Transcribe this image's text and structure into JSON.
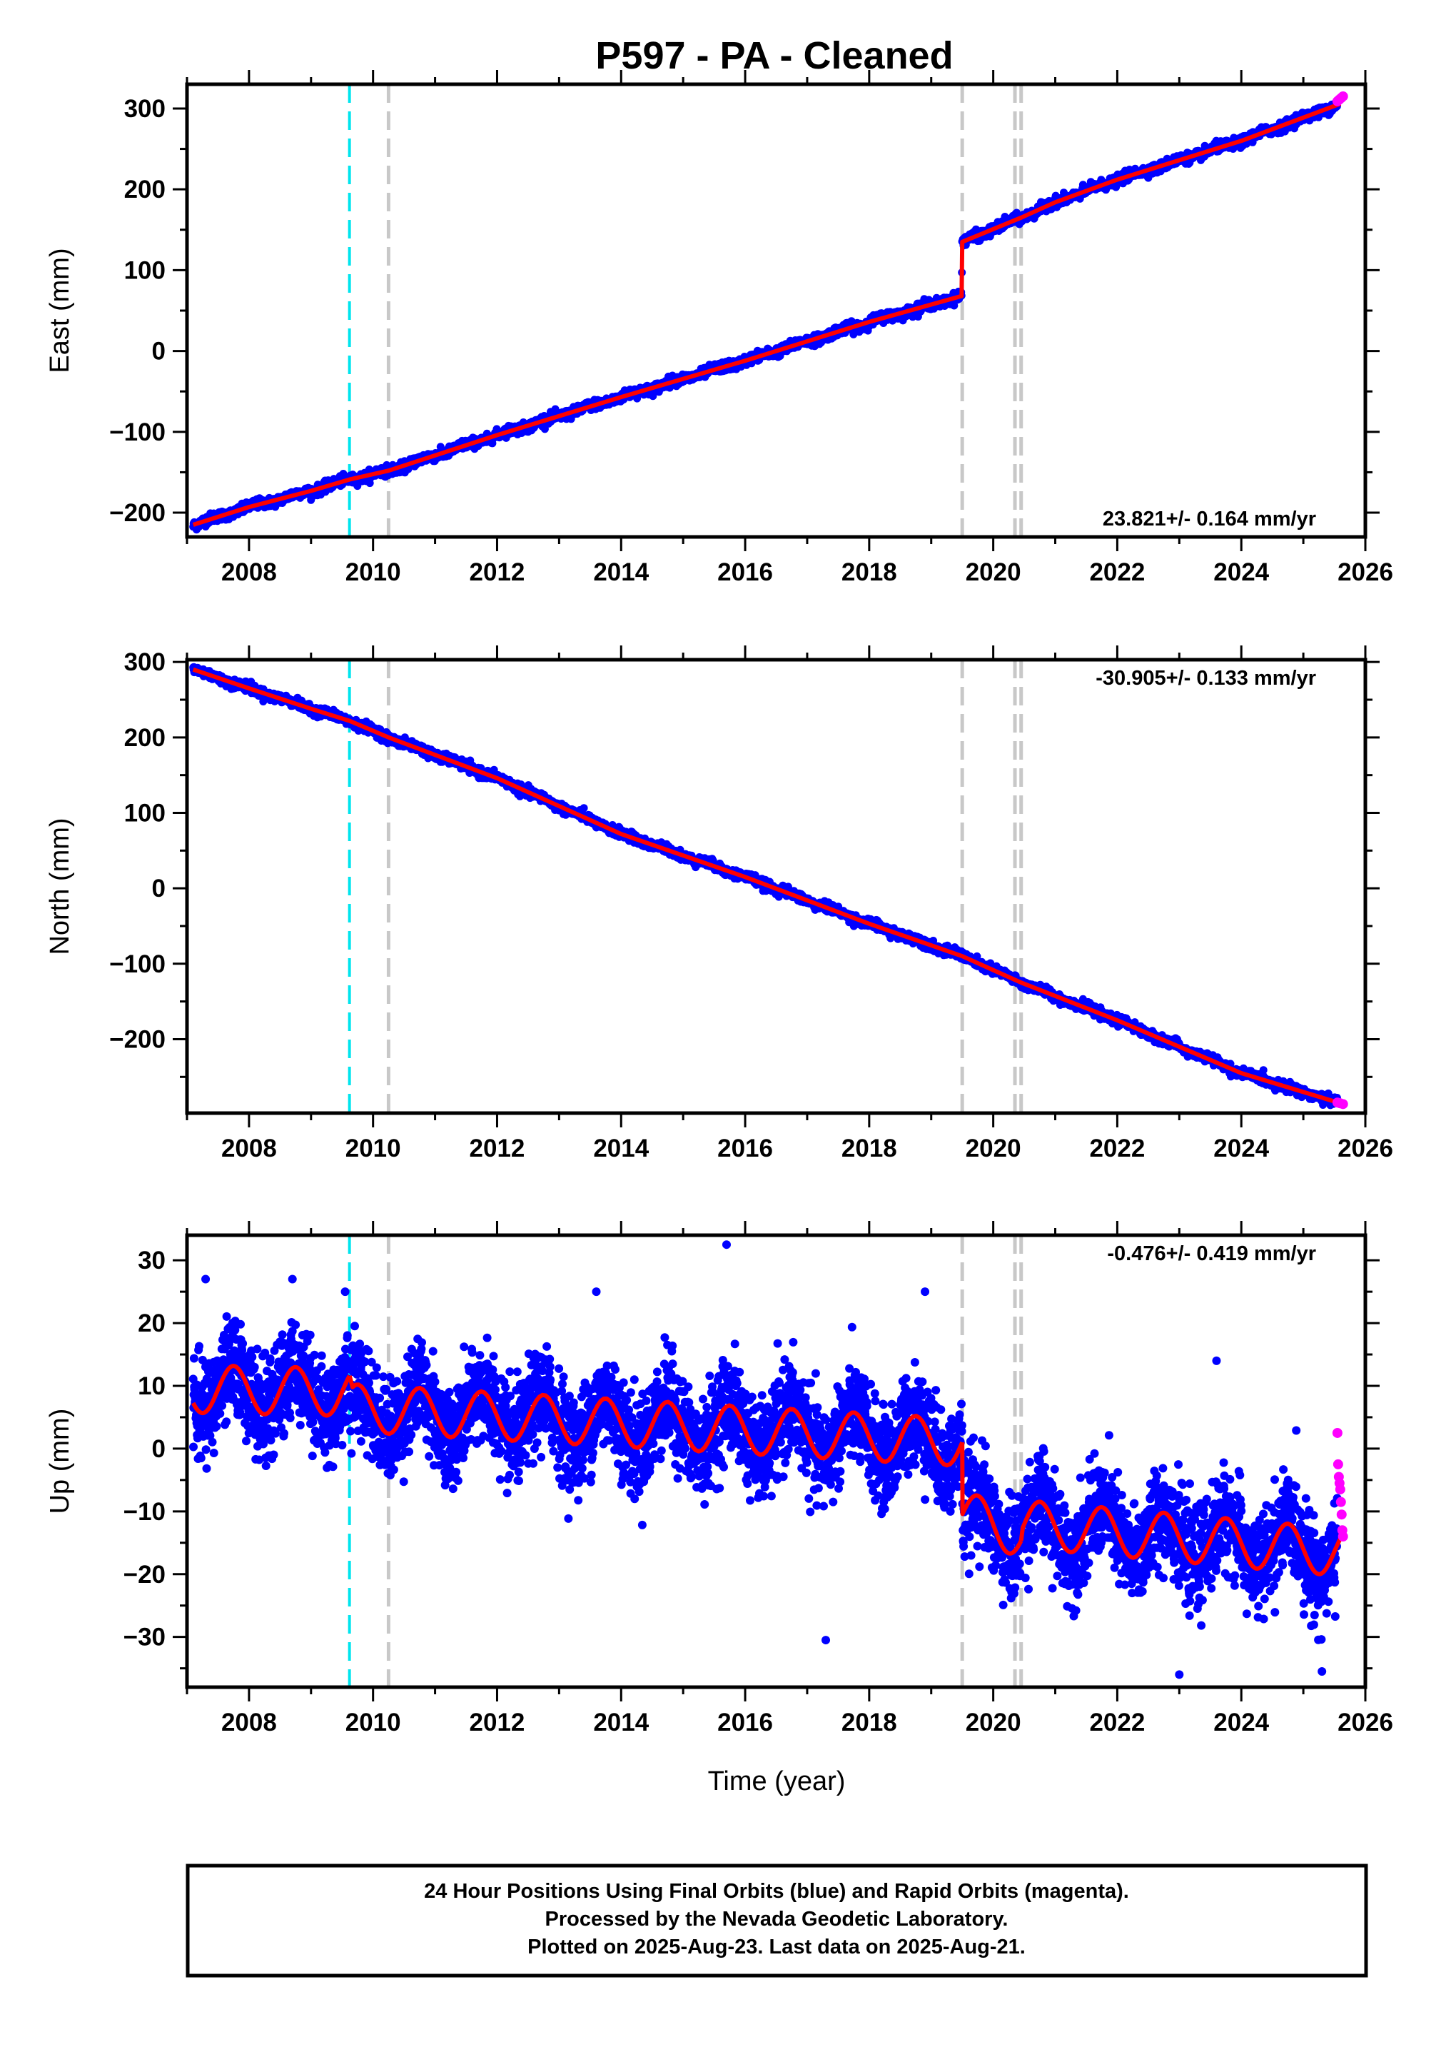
{
  "title": "P597  - PA - Cleaned",
  "colors": {
    "final": "#0000ff",
    "rapid": "#ff00ff",
    "model": "#ff0000",
    "cyan_line": "#00e5ee",
    "gray_line": "#c8c8c8",
    "frame": "#000000"
  },
  "x_axis": {
    "label": "Time (year)",
    "range": [
      2007.0,
      2026.0
    ],
    "ticks": [
      2008,
      2010,
      2012,
      2014,
      2016,
      2018,
      2020,
      2022,
      2024,
      2026
    ],
    "tick_labels": [
      "2008",
      "2010",
      "2012",
      "2014",
      "2016",
      "2018",
      "2020",
      "2022",
      "2024",
      "2026"
    ]
  },
  "vertical_lines": [
    {
      "year": 2009.62,
      "color": "cyan",
      "style": "dashed"
    },
    {
      "year": 2010.25,
      "color": "gray",
      "style": "dashed"
    },
    {
      "year": 2019.5,
      "color": "gray",
      "style": "dashed"
    },
    {
      "year": 2020.35,
      "color": "gray",
      "style": "dashed"
    },
    {
      "year": 2020.45,
      "color": "gray",
      "style": "dashed"
    }
  ],
  "chart_data": [
    {
      "type": "scatter",
      "component": "East",
      "ylabel": "East (mm)",
      "ylim": [
        -230,
        330
      ],
      "yticks": [
        -200,
        -100,
        0,
        100,
        200,
        300
      ],
      "ytick_labels": [
        "−200",
        "−100",
        "0",
        "100",
        "200",
        "300"
      ],
      "rate_text": "23.821+/- 0.164 mm/yr",
      "rate_position": "bottom-right",
      "velocity_mm_per_yr": 23.821,
      "steps": [
        {
          "year": 2019.5,
          "offset_mm": 67
        }
      ],
      "annual_amplitude_mm": 1,
      "model": [
        [
          2007.1,
          -215
        ],
        [
          2008.0,
          -193
        ],
        [
          2009.0,
          -173
        ],
        [
          2009.62,
          -159
        ],
        [
          2010.25,
          -148
        ],
        [
          2012.0,
          -104
        ],
        [
          2014.0,
          -57
        ],
        [
          2016.0,
          -12
        ],
        [
          2018.0,
          36
        ],
        [
          2019.49,
          68
        ],
        [
          2019.5,
          135
        ],
        [
          2020.45,
          165
        ],
        [
          2021.0,
          184
        ],
        [
          2022.0,
          212
        ],
        [
          2023.0,
          236
        ],
        [
          2024.0,
          260
        ],
        [
          2025.6,
          306
        ]
      ],
      "series": [
        {
          "name": "Final Orbits (blue)",
          "x_range": [
            2007.1,
            2025.55
          ],
          "scatter_mm": 3
        },
        {
          "name": "Rapid Orbits (magenta)",
          "x_range": [
            2025.55,
            2025.64
          ],
          "values_mm": [
            309,
            311,
            313,
            315
          ]
        }
      ]
    },
    {
      "type": "scatter",
      "component": "North",
      "ylabel": "North (mm)",
      "ylim": [
        -298,
        303
      ],
      "yticks": [
        -200,
        -100,
        0,
        100,
        200,
        300
      ],
      "ytick_labels": [
        "−200",
        "−100",
        "0",
        "100",
        "200",
        "300"
      ],
      "rate_text": "-30.905+/- 0.133 mm/yr",
      "rate_position": "top-right",
      "velocity_mm_per_yr": -30.905,
      "model": [
        [
          2007.1,
          290
        ],
        [
          2008.0,
          265
        ],
        [
          2009.0,
          238
        ],
        [
          2009.62,
          222
        ],
        [
          2010.25,
          200
        ],
        [
          2012.0,
          146
        ],
        [
          2014.0,
          72
        ],
        [
          2016.0,
          15
        ],
        [
          2018.0,
          -47
        ],
        [
          2019.5,
          -90
        ],
        [
          2020.45,
          -125
        ],
        [
          2022.0,
          -175
        ],
        [
          2024.0,
          -245
        ],
        [
          2025.6,
          -285
        ]
      ],
      "series": [
        {
          "name": "Final Orbits (blue)",
          "x_range": [
            2007.1,
            2025.55
          ],
          "scatter_mm": 3
        },
        {
          "name": "Rapid Orbits (magenta)",
          "x_range": [
            2025.55,
            2025.64
          ],
          "values_mm": [
            -284,
            -285,
            -286
          ]
        }
      ]
    },
    {
      "type": "scatter",
      "component": "Up",
      "ylabel": "Up (mm)",
      "ylim": [
        -38,
        34
      ],
      "yticks": [
        -30,
        -20,
        -10,
        0,
        10,
        20,
        30
      ],
      "ytick_labels": [
        "−30",
        "−20",
        "−10",
        "0",
        "10",
        "20",
        "30"
      ],
      "rate_text": "-0.476+/- 0.419 mm/yr",
      "rate_position": "top-right",
      "velocity_mm_per_yr": -0.476,
      "annual_amplitude_mm": 3.8,
      "model_segments": [
        {
          "x_range": [
            2007.1,
            2009.62
          ],
          "start": 9.5,
          "end": 9.0,
          "amplitude": 3.8
        },
        {
          "x_range": [
            2009.62,
            2019.5
          ],
          "start": 6.5,
          "end": 1.0,
          "amplitude": 3.8
        },
        {
          "x_range": [
            2019.5,
            2020.45
          ],
          "start": -10.5,
          "end": -13.5,
          "amplitude": 3.8
        },
        {
          "x_range": [
            2020.45,
            2025.6
          ],
          "start": -12.0,
          "end": -16.5,
          "amplitude": 3.8
        }
      ],
      "outliers": [
        [
          2007.3,
          27
        ],
        [
          2008.7,
          27
        ],
        [
          2009.55,
          25
        ],
        [
          2015.7,
          32.5
        ],
        [
          2017.3,
          -30.5
        ],
        [
          2023.0,
          -36
        ],
        [
          2023.6,
          14
        ],
        [
          2025.3,
          -35.5
        ],
        [
          2018.9,
          25
        ],
        [
          2013.6,
          25
        ]
      ],
      "series": [
        {
          "name": "Final Orbits (blue)",
          "x_range": [
            2007.1,
            2025.55
          ],
          "scatter_mm": 3.8
        },
        {
          "name": "Rapid Orbits (magenta)",
          "x_range": [
            2025.55,
            2025.64
          ],
          "values_mm": [
            2.5,
            -2.5,
            -4.5,
            -5.5,
            -6.5,
            -8.5,
            -10.5,
            -13,
            -14
          ]
        }
      ]
    }
  ],
  "footer": {
    "line1": "24 Hour Positions Using Final Orbits (blue) and Rapid Orbits (magenta).",
    "line2": "Processed by the Nevada Geodetic Laboratory.",
    "line3": "Plotted on 2025-Aug-23. Last data on 2025-Aug-21."
  }
}
